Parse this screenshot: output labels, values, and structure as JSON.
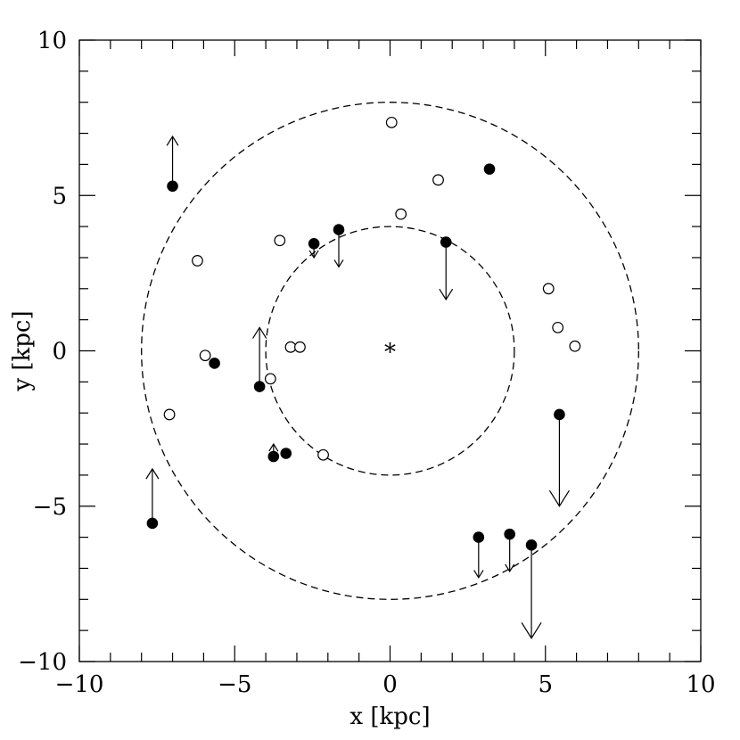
{
  "chart_data": {
    "type": "scatter",
    "xlabel": "x [kpc]",
    "ylabel": "y [kpc]",
    "xlim": [
      -10,
      10
    ],
    "ylim": [
      -10,
      10
    ],
    "xticks": [
      -10,
      -5,
      0,
      5,
      10
    ],
    "yticks": [
      -10,
      -5,
      0,
      5,
      10
    ],
    "xtick_labels": [
      "−10",
      "−5",
      "0",
      "5",
      "10"
    ],
    "ytick_labels": [
      "−10",
      "−5",
      "0",
      "5",
      "10"
    ],
    "minor_tick_step": 1,
    "grid": false,
    "center_marker": {
      "x": 0,
      "y": 0,
      "symbol": "*"
    },
    "circles": [
      {
        "radius": 4,
        "style": "dashed"
      },
      {
        "radius": 8,
        "style": "dashed"
      }
    ],
    "series": [
      {
        "marker": "filled-circle",
        "points": [
          {
            "x": -7.0,
            "y": 5.3,
            "arrow": "up",
            "arrow_len": 1.6
          },
          {
            "x": -2.45,
            "y": 3.45,
            "arrow": "down",
            "arrow_len": 0.45
          },
          {
            "x": -1.65,
            "y": 3.9,
            "arrow": "down",
            "arrow_len": 1.2
          },
          {
            "x": 1.8,
            "y": 3.5,
            "arrow": "down",
            "arrow_len": 1.85
          },
          {
            "x": 3.2,
            "y": 5.85
          },
          {
            "x": -5.65,
            "y": -0.4
          },
          {
            "x": -4.2,
            "y": -1.15,
            "arrow": "up",
            "arrow_len": 1.9
          },
          {
            "x": -3.75,
            "y": -3.4,
            "arrow": "up",
            "arrow_len": 0.4
          },
          {
            "x": -3.35,
            "y": -3.3
          },
          {
            "x": 5.45,
            "y": -2.05,
            "arrow": "down",
            "arrow_len": 2.95
          },
          {
            "x": -7.65,
            "y": -5.55,
            "arrow": "up",
            "arrow_len": 1.75
          },
          {
            "x": 2.85,
            "y": -6.0,
            "arrow": "down",
            "arrow_len": 1.3
          },
          {
            "x": 3.85,
            "y": -5.9,
            "arrow": "down",
            "arrow_len": 1.2
          },
          {
            "x": 4.55,
            "y": -6.25,
            "arrow": "down",
            "arrow_len": 3.0
          }
        ]
      },
      {
        "marker": "open-circle",
        "points": [
          {
            "x": 0.05,
            "y": 7.35
          },
          {
            "x": 1.55,
            "y": 5.5
          },
          {
            "x": 0.35,
            "y": 4.4
          },
          {
            "x": -3.55,
            "y": 3.55
          },
          {
            "x": -6.2,
            "y": 2.9
          },
          {
            "x": 5.1,
            "y": 2.0
          },
          {
            "x": 5.4,
            "y": 0.75
          },
          {
            "x": 5.95,
            "y": 0.15
          },
          {
            "x": -3.2,
            "y": 0.12
          },
          {
            "x": -2.9,
            "y": 0.12
          },
          {
            "x": -5.95,
            "y": -0.15
          },
          {
            "x": -3.85,
            "y": -0.9
          },
          {
            "x": -7.1,
            "y": -2.05
          },
          {
            "x": -2.15,
            "y": -3.35
          }
        ]
      }
    ]
  }
}
